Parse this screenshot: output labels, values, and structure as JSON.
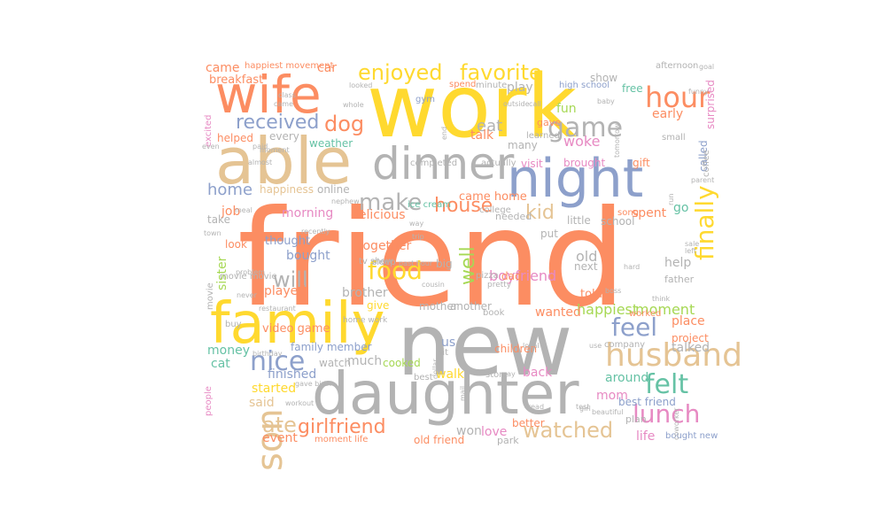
{
  "words": [
    {
      "text": "friend",
      "color": "#fc8d62"
    },
    {
      "text": "work",
      "color": "#ffd92f"
    },
    {
      "text": "new",
      "color": "#b3b3b3"
    },
    {
      "text": "daughter",
      "color": "#b3b3b3"
    },
    {
      "text": "night",
      "color": "#8da0cb"
    },
    {
      "text": "family",
      "color": "#ffd92f"
    },
    {
      "text": "able",
      "color": "#e5c494"
    },
    {
      "text": "wife",
      "color": "#fc8d62"
    },
    {
      "text": "dinner",
      "color": "#b3b3b3"
    },
    {
      "text": "husband",
      "color": "#e5c494"
    },
    {
      "text": "son",
      "color": "#e5c494"
    },
    {
      "text": "enjoyed",
      "color": "#ffd92f"
    },
    {
      "text": "favorite",
      "color": "#ffd92f"
    },
    {
      "text": "hour",
      "color": "#fc8d62"
    },
    {
      "text": "game",
      "color": "#b3b3b3"
    },
    {
      "text": "finally",
      "color": "#ffd92f"
    },
    {
      "text": "make",
      "color": "#b3b3b3"
    },
    {
      "text": "lunch",
      "color": "#e78ac3"
    },
    {
      "text": "felt",
      "color": "#66c2a5"
    },
    {
      "text": "feel",
      "color": "#8da0cb"
    },
    {
      "text": "nice",
      "color": "#8da0cb"
    },
    {
      "text": "food",
      "color": "#ffd92f"
    },
    {
      "text": "watched",
      "color": "#e5c494"
    },
    {
      "text": "girlfriend",
      "color": "#fc8d62"
    },
    {
      "text": "received",
      "color": "#8da0cb"
    },
    {
      "text": "dog",
      "color": "#fc8d62"
    },
    {
      "text": "house",
      "color": "#fc8d62"
    },
    {
      "text": "well",
      "color": "#a6d854"
    },
    {
      "text": "will",
      "color": "#b3b3b3"
    },
    {
      "text": "ate",
      "color": "#e5c494"
    },
    {
      "text": "home",
      "color": "#8da0cb"
    },
    {
      "text": "kid",
      "color": "#e5c494"
    },
    {
      "text": "eat",
      "color": "#b3b3b3"
    },
    {
      "text": "talk",
      "color": "#fc8d62"
    },
    {
      "text": "woke",
      "color": "#e78ac3"
    },
    {
      "text": "fun",
      "color": "#a6d854"
    },
    {
      "text": "came",
      "color": "#fc8d62"
    },
    {
      "text": "car",
      "color": "#fc8d62"
    },
    {
      "text": "breakfast",
      "color": "#fc8d62"
    },
    {
      "text": "happiest movement",
      "color": "#fc8d62"
    },
    {
      "text": "play",
      "color": "#b3b3b3"
    },
    {
      "text": "show",
      "color": "#b3b3b3"
    },
    {
      "text": "free",
      "color": "#66c2a5"
    },
    {
      "text": "afternoon",
      "color": "#b3b3b3"
    },
    {
      "text": "early",
      "color": "#fc8d62"
    },
    {
      "text": "surprised",
      "color": "#e78ac3"
    },
    {
      "text": "called",
      "color": "#8da0cb"
    },
    {
      "text": "gift",
      "color": "#fc8d62"
    },
    {
      "text": "brought",
      "color": "#e78ac3"
    },
    {
      "text": "job",
      "color": "#fc8d62"
    },
    {
      "text": "morning",
      "color": "#e78ac3"
    },
    {
      "text": "delicious",
      "color": "#fc8d62"
    },
    {
      "text": "came home",
      "color": "#fc8d62"
    },
    {
      "text": "go",
      "color": "#66c2a5"
    },
    {
      "text": "spent",
      "color": "#fc8d62"
    },
    {
      "text": "school",
      "color": "#b3b3b3"
    },
    {
      "text": "little",
      "color": "#b3b3b3"
    },
    {
      "text": "sister",
      "color": "#a6d854"
    },
    {
      "text": "bought",
      "color": "#8da0cb"
    },
    {
      "text": "thought",
      "color": "#8da0cb"
    },
    {
      "text": "together",
      "color": "#fc8d62"
    },
    {
      "text": "played",
      "color": "#fc8d62"
    },
    {
      "text": "brother",
      "color": "#b3b3b3"
    },
    {
      "text": "boyfriend",
      "color": "#e78ac3"
    },
    {
      "text": "old",
      "color": "#b3b3b3"
    },
    {
      "text": "help",
      "color": "#b3b3b3"
    },
    {
      "text": "next",
      "color": "#b3b3b3"
    },
    {
      "text": "told",
      "color": "#fc8d62"
    },
    {
      "text": "happiest",
      "color": "#a6d854"
    },
    {
      "text": "moment",
      "color": "#a6d854"
    },
    {
      "text": "wanted",
      "color": "#fc8d62"
    },
    {
      "text": "place",
      "color": "#fc8d62"
    },
    {
      "text": "project",
      "color": "#fc8d62"
    },
    {
      "text": "talked",
      "color": "#b3b3b3"
    },
    {
      "text": "around",
      "color": "#66c2a5"
    },
    {
      "text": "best friend",
      "color": "#8da0cb"
    },
    {
      "text": "mom",
      "color": "#e78ac3"
    },
    {
      "text": "life",
      "color": "#e78ac3"
    },
    {
      "text": "bought new",
      "color": "#8da0cb"
    },
    {
      "text": "love",
      "color": "#e78ac3"
    },
    {
      "text": "won",
      "color": "#b3b3b3"
    },
    {
      "text": "park",
      "color": "#b3b3b3"
    },
    {
      "text": "old friend",
      "color": "#fc8d62"
    },
    {
      "text": "moment life",
      "color": "#fc8d62"
    },
    {
      "text": "event",
      "color": "#fc8d62"
    },
    {
      "text": "said",
      "color": "#e5c494"
    },
    {
      "text": "started",
      "color": "#ffd92f"
    },
    {
      "text": "finished",
      "color": "#8da0cb"
    },
    {
      "text": "walk",
      "color": "#ffd92f"
    },
    {
      "text": "back",
      "color": "#e78ac3"
    },
    {
      "text": "cooked",
      "color": "#a6d854"
    },
    {
      "text": "much",
      "color": "#b3b3b3"
    },
    {
      "text": "watch",
      "color": "#b3b3b3"
    },
    {
      "text": "family member",
      "color": "#8da0cb"
    },
    {
      "text": "cat",
      "color": "#66c2a5"
    },
    {
      "text": "money",
      "color": "#66c2a5"
    },
    {
      "text": "video game",
      "color": "#fc8d62"
    },
    {
      "text": "mother",
      "color": "#b3b3b3"
    },
    {
      "text": "another",
      "color": "#b3b3b3"
    },
    {
      "text": "us",
      "color": "#8da0cb"
    },
    {
      "text": "children",
      "color": "#fc8d62"
    },
    {
      "text": "helped",
      "color": "#fc8d62"
    },
    {
      "text": "every",
      "color": "#b3b3b3"
    },
    {
      "text": "weather",
      "color": "#66c2a5"
    },
    {
      "text": "happiness",
      "color": "#e5c494"
    },
    {
      "text": "online",
      "color": "#b3b3b3"
    },
    {
      "text": "visit",
      "color": "#e78ac3"
    },
    {
      "text": "many",
      "color": "#b3b3b3"
    },
    {
      "text": "gave",
      "color": "#fc8d62"
    },
    {
      "text": "needed",
      "color": "#b3b3b3"
    },
    {
      "text": "big",
      "color": "#b3b3b3"
    },
    {
      "text": "pizza",
      "color": "#b3b3b3"
    },
    {
      "text": "dad",
      "color": "#fc8d62"
    },
    {
      "text": "put",
      "color": "#b3b3b3"
    },
    {
      "text": "song",
      "color": "#fc8d62"
    },
    {
      "text": "take",
      "color": "#b3b3b3"
    },
    {
      "text": "look",
      "color": "#fc8d62"
    },
    {
      "text": "give",
      "color": "#ffd92f"
    },
    {
      "text": "book",
      "color": "#b3b3b3"
    },
    {
      "text": "worked",
      "color": "#fc8d62"
    },
    {
      "text": "father",
      "color": "#b3b3b3"
    },
    {
      "text": "company",
      "color": "#b3b3b3"
    },
    {
      "text": "best",
      "color": "#b3b3b3"
    },
    {
      "text": "better",
      "color": "#fc8d62"
    },
    {
      "text": "people",
      "color": "#e78ac3"
    },
    {
      "text": "store",
      "color": "#b3b3b3"
    },
    {
      "text": "plan",
      "color": "#b3b3b3"
    },
    {
      "text": "buy",
      "color": "#b3b3b3"
    },
    {
      "text": "hit",
      "color": "#b3b3b3"
    },
    {
      "text": "movie",
      "color": "#b3b3b3"
    },
    {
      "text": "movie movie",
      "color": "#b3b3b3"
    },
    {
      "text": "coffee",
      "color": "#b3b3b3"
    },
    {
      "text": "small",
      "color": "#b3b3b3"
    },
    {
      "text": "learned",
      "color": "#b3b3b3"
    },
    {
      "text": "actually",
      "color": "#b3b3b3"
    },
    {
      "text": "completed",
      "color": "#b3b3b3"
    },
    {
      "text": "college",
      "color": "#b3b3b3"
    },
    {
      "text": "spend",
      "color": "#fc8d62"
    },
    {
      "text": "minute",
      "color": "#b3b3b3"
    },
    {
      "text": "high school",
      "color": "#8da0cb"
    },
    {
      "text": "gym",
      "color": "#8da0cb"
    },
    {
      "text": "ice cream",
      "color": "#66c2a5"
    },
    {
      "text": "excited",
      "color": "#e78ac3"
    },
    {
      "text": "even",
      "color": "#b3b3b3"
    },
    {
      "text": "paid",
      "color": "#b3b3b3"
    },
    {
      "text": "meal",
      "color": "#b3b3b3"
    },
    {
      "text": "town",
      "color": "#b3b3b3"
    },
    {
      "text": "tv show",
      "color": "#b3b3b3"
    },
    {
      "text": "sleep",
      "color": "#b3b3b3"
    },
    {
      "text": "past hour",
      "color": "#b3b3b3"
    },
    {
      "text": "cousin",
      "color": "#b3b3b3"
    },
    {
      "text": "pretty",
      "color": "#b3b3b3"
    },
    {
      "text": "home work",
      "color": "#b3b3b3"
    },
    {
      "text": "birthday",
      "color": "#b3b3b3"
    },
    {
      "text": "gave birth",
      "color": "#b3b3b3"
    },
    {
      "text": "workout",
      "color": "#b3b3b3"
    },
    {
      "text": "read",
      "color": "#b3b3b3"
    },
    {
      "text": "mail",
      "color": "#b3b3b3"
    },
    {
      "text": "beautiful",
      "color": "#b3b3b3"
    },
    {
      "text": "coworker",
      "color": "#b3b3b3"
    },
    {
      "text": "girl",
      "color": "#b3b3b3"
    },
    {
      "text": "boss",
      "color": "#b3b3b3"
    },
    {
      "text": "hard",
      "color": "#b3b3b3"
    },
    {
      "text": "left",
      "color": "#b3b3b3"
    },
    {
      "text": "sale",
      "color": "#b3b3b3"
    },
    {
      "text": "parent",
      "color": "#b3b3b3"
    },
    {
      "text": "nephew",
      "color": "#b3b3b3"
    },
    {
      "text": "way",
      "color": "#b3b3b3"
    },
    {
      "text": "trip",
      "color": "#b3b3b3"
    },
    {
      "text": "recently",
      "color": "#b3b3b3"
    },
    {
      "text": "class",
      "color": "#b3b3b3"
    },
    {
      "text": "came",
      "color": "#b3b3b3"
    },
    {
      "text": "whole",
      "color": "#b3b3b3"
    },
    {
      "text": "looked",
      "color": "#b3b3b3"
    },
    {
      "text": "baby",
      "color": "#b3b3b3"
    },
    {
      "text": "funny",
      "color": "#b3b3b3"
    },
    {
      "text": "goal",
      "color": "#b3b3b3"
    },
    {
      "text": "call",
      "color": "#b3b3b3"
    },
    {
      "text": "outside",
      "color": "#b3b3b3"
    },
    {
      "text": "end",
      "color": "#b3b3b3"
    },
    {
      "text": "moment",
      "color": "#b3b3b3"
    },
    {
      "text": "almost",
      "color": "#b3b3b3"
    },
    {
      "text": "tomorrow",
      "color": "#b3b3b3"
    },
    {
      "text": "run",
      "color": "#b3b3b3"
    },
    {
      "text": "local",
      "color": "#b3b3b3"
    },
    {
      "text": "pay",
      "color": "#b3b3b3"
    },
    {
      "text": "test",
      "color": "#b3b3b3"
    },
    {
      "text": "dollar",
      "color": "#b3b3b3"
    },
    {
      "text": "never",
      "color": "#b3b3b3"
    },
    {
      "text": "problem",
      "color": "#b3b3b3"
    },
    {
      "text": "restaurant",
      "color": "#b3b3b3"
    },
    {
      "text": "use",
      "color": "#b3b3b3"
    },
    {
      "text": "think",
      "color": "#b3b3b3"
    },
    {
      "text": "laugh",
      "color": "#b3b3b3"
    },
    {
      "text": "bed",
      "color": "#b3b3b3"
    },
    {
      "text": "pokemon",
      "color": "#b3b3b3"
    }
  ]
}
